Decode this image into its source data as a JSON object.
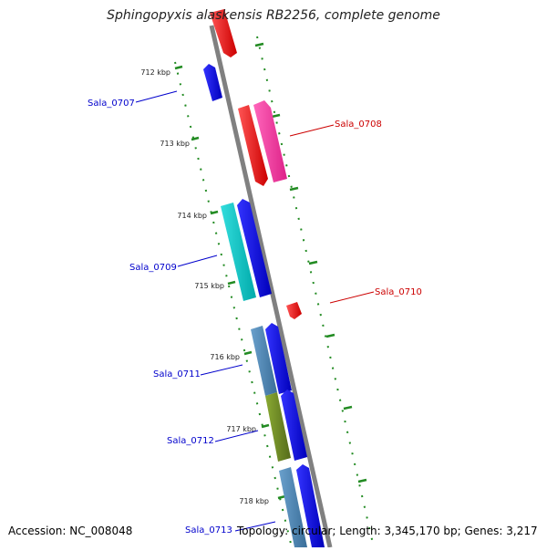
{
  "title": "Sphingopyxis alaskensis RB2256, complete genome",
  "footer": {
    "accession": "Accession: NC_008048",
    "summary": "Topology: circular; Length: 3,345,170 bp; Genes: 3,217"
  },
  "ticks": [
    "712 kbp",
    "713 kbp",
    "714 kbp",
    "715 kbp",
    "716 kbp",
    "717 kbp",
    "718 kbp"
  ],
  "labels": [
    {
      "text": "Sala_0707",
      "color": "#0000cc"
    },
    {
      "text": "Sala_0708",
      "color": "#cc0000"
    },
    {
      "text": "Sala_0709",
      "color": "#0000cc"
    },
    {
      "text": "Sala_0710",
      "color": "#cc0000"
    },
    {
      "text": "Sala_0711",
      "color": "#0000cc"
    },
    {
      "text": "Sala_0712",
      "color": "#0000cc"
    },
    {
      "text": "Sala_0713",
      "color": "#0000cc"
    }
  ],
  "colors": {
    "forward_cds": "#ff0000",
    "reverse_cds": "#0000ff",
    "magenta_feature": "#ff33aa",
    "cyan_feature": "#00cccc",
    "steelblue_feature": "#4682b4",
    "olive_feature": "#6b8e23",
    "backbone": "#808080",
    "tick_marks": "#228b22"
  }
}
